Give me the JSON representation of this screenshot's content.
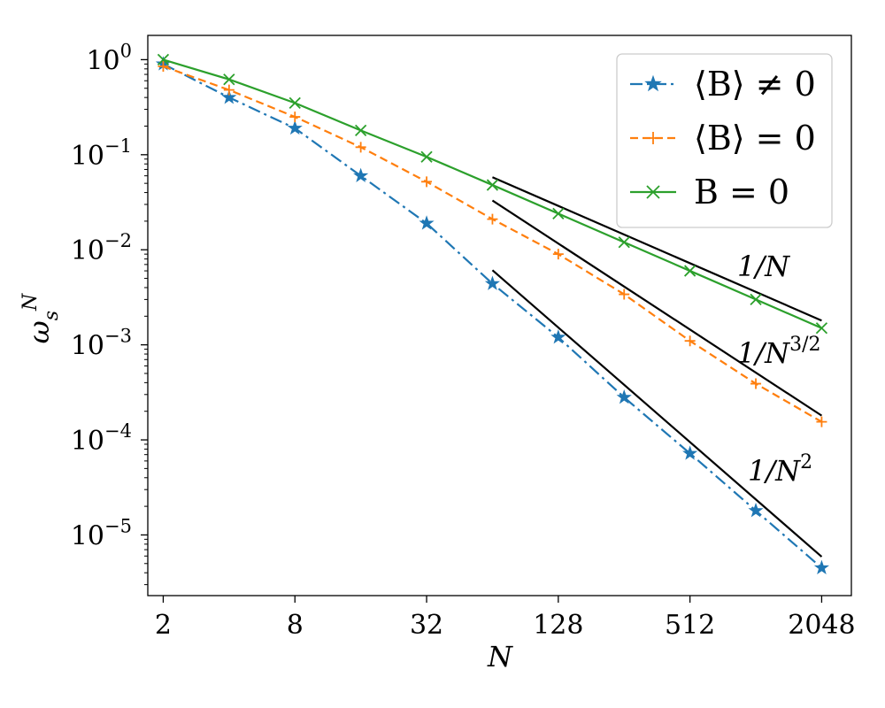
{
  "chart_data": {
    "type": "line",
    "x_scale": "log2",
    "y_scale": "log10",
    "xlabel": "N",
    "ylabel": "ω_s^N",
    "xlim": [
      1.7,
      2800
    ],
    "ylim": [
      2.3e-06,
      1.8
    ],
    "x_ticks": [
      {
        "value": 2,
        "label": "2"
      },
      {
        "value": 8,
        "label": "8"
      },
      {
        "value": 32,
        "label": "32"
      },
      {
        "value": 128,
        "label": "128"
      },
      {
        "value": 512,
        "label": "512"
      },
      {
        "value": 2048,
        "label": "2048"
      }
    ],
    "y_ticks": [
      {
        "value": 1,
        "base": "10",
        "exp": "0"
      },
      {
        "value": 0.1,
        "base": "10",
        "exp": "−1"
      },
      {
        "value": 0.01,
        "base": "10",
        "exp": "−2"
      },
      {
        "value": 0.001,
        "base": "10",
        "exp": "−3"
      },
      {
        "value": 0.0001,
        "base": "10",
        "exp": "−4"
      },
      {
        "value": 1e-05,
        "base": "10",
        "exp": "−5"
      }
    ],
    "x": [
      2,
      4,
      8,
      16,
      32,
      64,
      128,
      256,
      512,
      1024,
      2048
    ],
    "series": [
      {
        "name": "⟨B⟩ ≠ 0",
        "color": "#1f77b4",
        "dash": "14,5,3,5",
        "marker": "star",
        "values": [
          0.9,
          0.4,
          0.19,
          0.06,
          0.019,
          0.0044,
          0.0012,
          0.00028,
          7.2e-05,
          1.8e-05,
          4.5e-06
        ]
      },
      {
        "name": "⟨B⟩ = 0",
        "color": "#ff7f0e",
        "dash": "9,5",
        "marker": "plus",
        "values": [
          0.85,
          0.48,
          0.25,
          0.12,
          0.052,
          0.021,
          0.009,
          0.0034,
          0.0011,
          0.00039,
          0.000155
        ]
      },
      {
        "name": "B = 0",
        "color": "#2ca02c",
        "dash": "",
        "marker": "x",
        "values": [
          1.0,
          0.62,
          0.35,
          0.18,
          0.095,
          0.048,
          0.024,
          0.012,
          0.006,
          0.003,
          0.0015
        ]
      }
    ],
    "reference_lines": [
      {
        "label_base": "1/N",
        "label_exp": "",
        "x": [
          64,
          2048
        ],
        "y": [
          0.058,
          0.0018
        ]
      },
      {
        "label_base": "1/N",
        "label_exp": "3/2",
        "x": [
          64,
          2048
        ],
        "y": [
          0.033,
          0.00018
        ]
      },
      {
        "label_base": "1/N",
        "label_exp": "2",
        "x": [
          64,
          2048
        ],
        "y": [
          0.0061,
          5.9e-06
        ]
      }
    ],
    "legend_position": "top-right",
    "grid": false
  }
}
